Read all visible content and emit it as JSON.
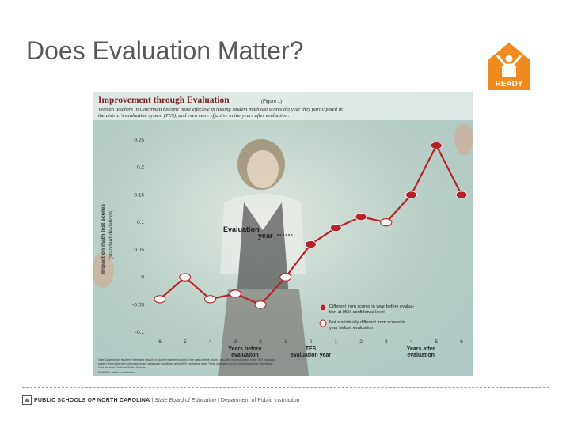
{
  "slide": {
    "title": "Does Evaluation Matter?"
  },
  "logo": {
    "text": "READY",
    "color": "#f08a1c"
  },
  "footer": {
    "org": "PUBLIC SCHOOLS OF NORTH CAROLINA",
    "board": "State Board of Education",
    "dept": "Department of Public Instruction"
  },
  "colors": {
    "line": "#b8232b",
    "accent_rule": "#9fb23a",
    "background": "#c8d9d2"
  },
  "chart_data": {
    "type": "line",
    "title": "Improvement through Evaluation",
    "figure_label": "(Figure 1)",
    "subtitle_line1": "Veteran teachers in Cincinnati become more effective in raising student math test scores the year they participated in",
    "subtitle_line2": "the district's evaluation system (TES), and even more effective in the years after evaluation.",
    "ylabel_line1": "Impact on math test scores",
    "ylabel_line2": "(standard deviations)",
    "ylim": [
      -0.1,
      0.25
    ],
    "y_ticks": [
      "0.25",
      "0.2",
      "0.15",
      "0.1",
      "0.05",
      "0",
      "-0.05",
      "-0.1"
    ],
    "y_tick_values": [
      0.25,
      0.2,
      0.15,
      0.1,
      0.05,
      0,
      -0.05,
      -0.1
    ],
    "categories": [
      "6",
      "5",
      "4",
      "3",
      "2",
      "1",
      "0",
      "1",
      "2",
      "3",
      "4",
      "5",
      "6"
    ],
    "x_groups": [
      {
        "line1": "Years before",
        "line2": "evaluation"
      },
      {
        "line1": "TES",
        "line2": "evaluation year"
      },
      {
        "line1": "Years after",
        "line2": "evaluation"
      }
    ],
    "values": [
      -0.04,
      0.0,
      -0.04,
      -0.03,
      -0.05,
      0.0,
      0.06,
      0.09,
      0.11,
      0.1,
      0.15,
      0.24,
      0.15
    ],
    "significant": [
      false,
      false,
      false,
      false,
      false,
      false,
      true,
      true,
      true,
      false,
      true,
      true,
      true
    ],
    "annotation_line1": "Evaluation",
    "annotation_line2": "year",
    "legend": {
      "sig_line1": "Different from scores in year before evalua-",
      "sig_line2": "tion at 95% confidence level",
      "nonsig_line1": "Not statistically different from scores in",
      "nonsig_line2": "year before evaluation"
    },
    "note_line1": "Note: Chart shows teachers' estimated impact on student math test scores in the years before, during, and after their evaluation in the TES evaluation",
    "note_line2": "system. Estimates with solid markers are statistically significant at the 95% confidence level. These estimates do not control for teacher experience.",
    "note_line3": "Data are from Cincinnati Public Schools.",
    "source": "SOURCE: Author's calculations"
  }
}
